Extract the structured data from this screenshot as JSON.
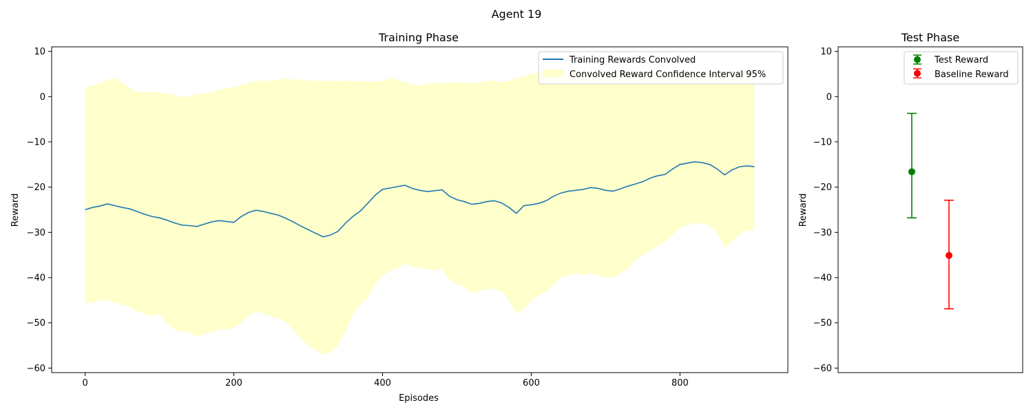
{
  "suptitle": "Agent 19",
  "chart_data": [
    {
      "type": "line",
      "title": "Training Phase",
      "xlabel": "Episodes",
      "ylabel": "Reward",
      "xlim": [
        -45,
        945
      ],
      "ylim": [
        -61,
        11
      ],
      "x_ticks": [
        0,
        200,
        400,
        600,
        800
      ],
      "x_tick_labels": [
        "0",
        "200",
        "400",
        "600",
        "800"
      ],
      "y_ticks": [
        10,
        0,
        -10,
        -20,
        -30,
        -40,
        -50,
        -60
      ],
      "y_tick_labels": [
        "10",
        "0",
        "−10",
        "−20",
        "−30",
        "−40",
        "−50",
        "−60"
      ],
      "grid": false,
      "legend_position": "top-right",
      "series": [
        {
          "name": "Training Rewards Convolved",
          "color": "#1f77b4",
          "x": [
            0,
            10,
            20,
            30,
            40,
            50,
            60,
            70,
            80,
            90,
            100,
            110,
            120,
            130,
            140,
            150,
            160,
            170,
            180,
            190,
            200,
            210,
            220,
            230,
            240,
            250,
            260,
            270,
            280,
            290,
            300,
            310,
            320,
            330,
            340,
            350,
            360,
            370,
            380,
            390,
            400,
            410,
            420,
            430,
            440,
            450,
            460,
            470,
            480,
            490,
            500,
            510,
            520,
            530,
            540,
            550,
            560,
            570,
            580,
            590,
            600,
            610,
            620,
            630,
            640,
            650,
            660,
            670,
            680,
            690,
            700,
            710,
            720,
            730,
            740,
            750,
            760,
            770,
            780,
            790,
            800,
            810,
            820,
            830,
            840,
            850,
            860,
            870,
            880,
            890,
            900
          ],
          "y": [
            -25.0,
            -24.5,
            -24.2,
            -23.7,
            -24.1,
            -24.5,
            -24.8,
            -25.4,
            -26.0,
            -26.5,
            -26.8,
            -27.3,
            -27.9,
            -28.4,
            -28.5,
            -28.7,
            -28.2,
            -27.7,
            -27.4,
            -27.6,
            -27.8,
            -26.5,
            -25.6,
            -25.1,
            -25.4,
            -25.8,
            -26.2,
            -26.9,
            -27.7,
            -28.6,
            -29.4,
            -30.2,
            -31.0,
            -30.6,
            -29.8,
            -28.0,
            -26.5,
            -25.3,
            -23.6,
            -21.8,
            -20.5,
            -20.2,
            -19.9,
            -19.6,
            -20.3,
            -20.7,
            -21.0,
            -20.8,
            -20.6,
            -22.0,
            -22.8,
            -23.2,
            -23.8,
            -23.6,
            -23.2,
            -23.0,
            -23.5,
            -24.5,
            -25.8,
            -24.1,
            -23.9,
            -23.6,
            -23.0,
            -22.0,
            -21.3,
            -20.9,
            -20.7,
            -20.5,
            -20.1,
            -20.3,
            -20.7,
            -20.9,
            -20.4,
            -19.8,
            -19.3,
            -18.8,
            -18.0,
            -17.5,
            -17.2,
            -16.0,
            -15.0,
            -14.7,
            -14.4,
            -14.6,
            -15.0,
            -16.0,
            -17.3,
            -16.2,
            -15.5,
            -15.3,
            -15.5
          ],
          "ci_upper": [
            2.0,
            2.5,
            3.0,
            3.8,
            4.0,
            3.0,
            2.0,
            1.0,
            1.0,
            1.0,
            1.0,
            0.5,
            0.5,
            0.0,
            0.0,
            0.5,
            0.8,
            1.0,
            1.5,
            1.8,
            2.0,
            2.5,
            3.0,
            3.5,
            3.5,
            3.5,
            3.7,
            4.0,
            3.8,
            3.8,
            3.5,
            3.5,
            3.5,
            3.5,
            3.4,
            3.5,
            3.5,
            3.4,
            3.3,
            3.3,
            3.5,
            4.0,
            3.8,
            3.2,
            2.7,
            2.5,
            2.8,
            3.0,
            3.0,
            3.0,
            3.2,
            3.0,
            3.0,
            3.2,
            3.5,
            3.5,
            3.2,
            3.5,
            4.0,
            4.5,
            5.0,
            5.5,
            5.8,
            5.8,
            5.8,
            5.5,
            5.5,
            5.5,
            5.5,
            5.2,
            5.0,
            5.3,
            5.5,
            5.6,
            5.8,
            5.8,
            5.8,
            5.8,
            5.8,
            5.8,
            5.8,
            5.8,
            5.8,
            5.8,
            5.8,
            5.8,
            5.8,
            5.8,
            5.8,
            5.8,
            5.8
          ],
          "ci_lower": [
            -45.5,
            -45.5,
            -45.0,
            -45.0,
            -45.5,
            -46.0,
            -46.5,
            -47.5,
            -48.0,
            -48.5,
            -48.0,
            -50.0,
            -51.5,
            -52.0,
            -52.0,
            -53.0,
            -52.5,
            -52.0,
            -51.5,
            -51.5,
            -51.0,
            -50.0,
            -48.5,
            -47.5,
            -48.0,
            -48.5,
            -49.0,
            -50.0,
            -51.5,
            -53.5,
            -55.0,
            -56.0,
            -57.0,
            -56.5,
            -55.0,
            -52.0,
            -48.0,
            -46.0,
            -44.5,
            -41.5,
            -39.5,
            -38.5,
            -38.0,
            -37.0,
            -37.5,
            -38.0,
            -38.0,
            -38.5,
            -38.0,
            -40.5,
            -41.5,
            -42.0,
            -43.5,
            -43.0,
            -42.5,
            -42.5,
            -43.0,
            -45.0,
            -48.0,
            -47.0,
            -45.0,
            -44.0,
            -43.0,
            -41.5,
            -40.0,
            -39.5,
            -39.0,
            -39.5,
            -39.0,
            -39.5,
            -40.0,
            -40.0,
            -39.0,
            -38.0,
            -36.0,
            -35.0,
            -34.0,
            -33.0,
            -32.0,
            -30.5,
            -29.0,
            -28.5,
            -28.0,
            -28.0,
            -28.5,
            -30.0,
            -33.5,
            -32.0,
            -30.5,
            -29.5,
            -29.5
          ]
        }
      ],
      "ci_series": {
        "name": "Convolved Reward Confidence Interval 95%",
        "color": "#ffffcc"
      }
    },
    {
      "type": "errorbar",
      "title": "Test Phase",
      "ylabel": "Reward",
      "ylim": [
        -61,
        11
      ],
      "y_ticks": [
        10,
        0,
        -10,
        -20,
        -30,
        -40,
        -50,
        -60
      ],
      "y_tick_labels": [
        "10",
        "0",
        "−10",
        "−20",
        "−30",
        "−40",
        "−50",
        "−60"
      ],
      "grid": false,
      "legend_position": "top-right",
      "series": [
        {
          "name": "Test Reward",
          "color": "#008000",
          "x": 0,
          "value": -16.6,
          "lower": -26.8,
          "upper": -3.7
        },
        {
          "name": "Baseline Reward",
          "color": "#ff0000",
          "x": 1,
          "value": -35.1,
          "lower": -46.9,
          "upper": -22.9
        }
      ]
    }
  ]
}
